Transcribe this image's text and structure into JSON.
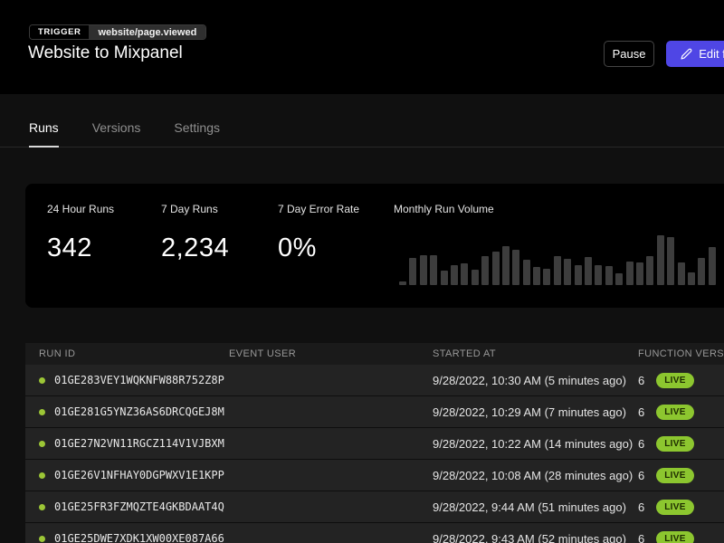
{
  "header": {
    "trigger_label": "TRIGGER",
    "trigger_event": "website/page.viewed",
    "title": "Website to Mixpanel",
    "pause_label": "Pause",
    "edit_label": "Edit function"
  },
  "tabs": [
    {
      "label": "Runs",
      "active": true
    },
    {
      "label": "Versions",
      "active": false
    },
    {
      "label": "Settings",
      "active": false
    }
  ],
  "stats": [
    {
      "label": "24 Hour Runs",
      "value": "342"
    },
    {
      "label": "7 Day Runs",
      "value": "2,234"
    },
    {
      "label": "7 Day Error Rate",
      "value": "0%"
    }
  ],
  "chart_data": {
    "type": "bar",
    "title": "Monthly Run Volume",
    "xlabel": "",
    "ylabel": "",
    "axes_shown": false,
    "bar_color": "#3d3d3d",
    "values_note": "relative daily run volume, percent of tallest bar (no numeric axis shown)",
    "values": [
      7,
      55,
      60,
      60,
      29,
      40,
      44,
      31,
      58,
      67,
      78,
      71,
      51,
      36,
      33,
      58,
      53,
      40,
      56,
      40,
      38,
      24,
      47,
      45,
      58,
      100,
      96,
      45,
      25,
      55,
      76
    ]
  },
  "table": {
    "columns": [
      "RUN ID",
      "EVENT USER",
      "STARTED AT",
      "FUNCTION VERSION"
    ],
    "rows": [
      {
        "run_id": "01GE283VEY1WQKNFW88R752Z8P",
        "event_user": "",
        "started_at": "9/28/2022, 10:30 AM (5 minutes ago)",
        "version": "6",
        "status": "LIVE"
      },
      {
        "run_id": "01GE281G5YNZ36AS6DRCQGEJ8M",
        "event_user": "",
        "started_at": "9/28/2022, 10:29 AM (7 minutes ago)",
        "version": "6",
        "status": "LIVE"
      },
      {
        "run_id": "01GE27N2VN11RGCZ114V1VJBXM",
        "event_user": "",
        "started_at": "9/28/2022, 10:22 AM (14 minutes ago)",
        "version": "6",
        "status": "LIVE"
      },
      {
        "run_id": "01GE26V1NFHAY0DGPWXV1E1KPP",
        "event_user": "",
        "started_at": "9/28/2022, 10:08 AM (28 minutes ago)",
        "version": "6",
        "status": "LIVE"
      },
      {
        "run_id": "01GE25FR3FZMQZTE4GKBDAAT4Q",
        "event_user": "",
        "started_at": "9/28/2022, 9:44 AM (51 minutes ago)",
        "version": "6",
        "status": "LIVE"
      },
      {
        "run_id": "01GE25DWE7XDK1XW00XE087A66",
        "event_user": "",
        "started_at": "9/28/2022, 9:43 AM (52 minutes ago)",
        "version": "6",
        "status": "LIVE"
      }
    ]
  },
  "colors": {
    "header_bg": "#000000",
    "page_bg": "#101010",
    "card_bg": "#000000",
    "accent_button": "#4f46e5",
    "live_green": "#8cc62f",
    "status_dot_green": "#9cc636",
    "bar_gray": "#3d3d3d"
  }
}
